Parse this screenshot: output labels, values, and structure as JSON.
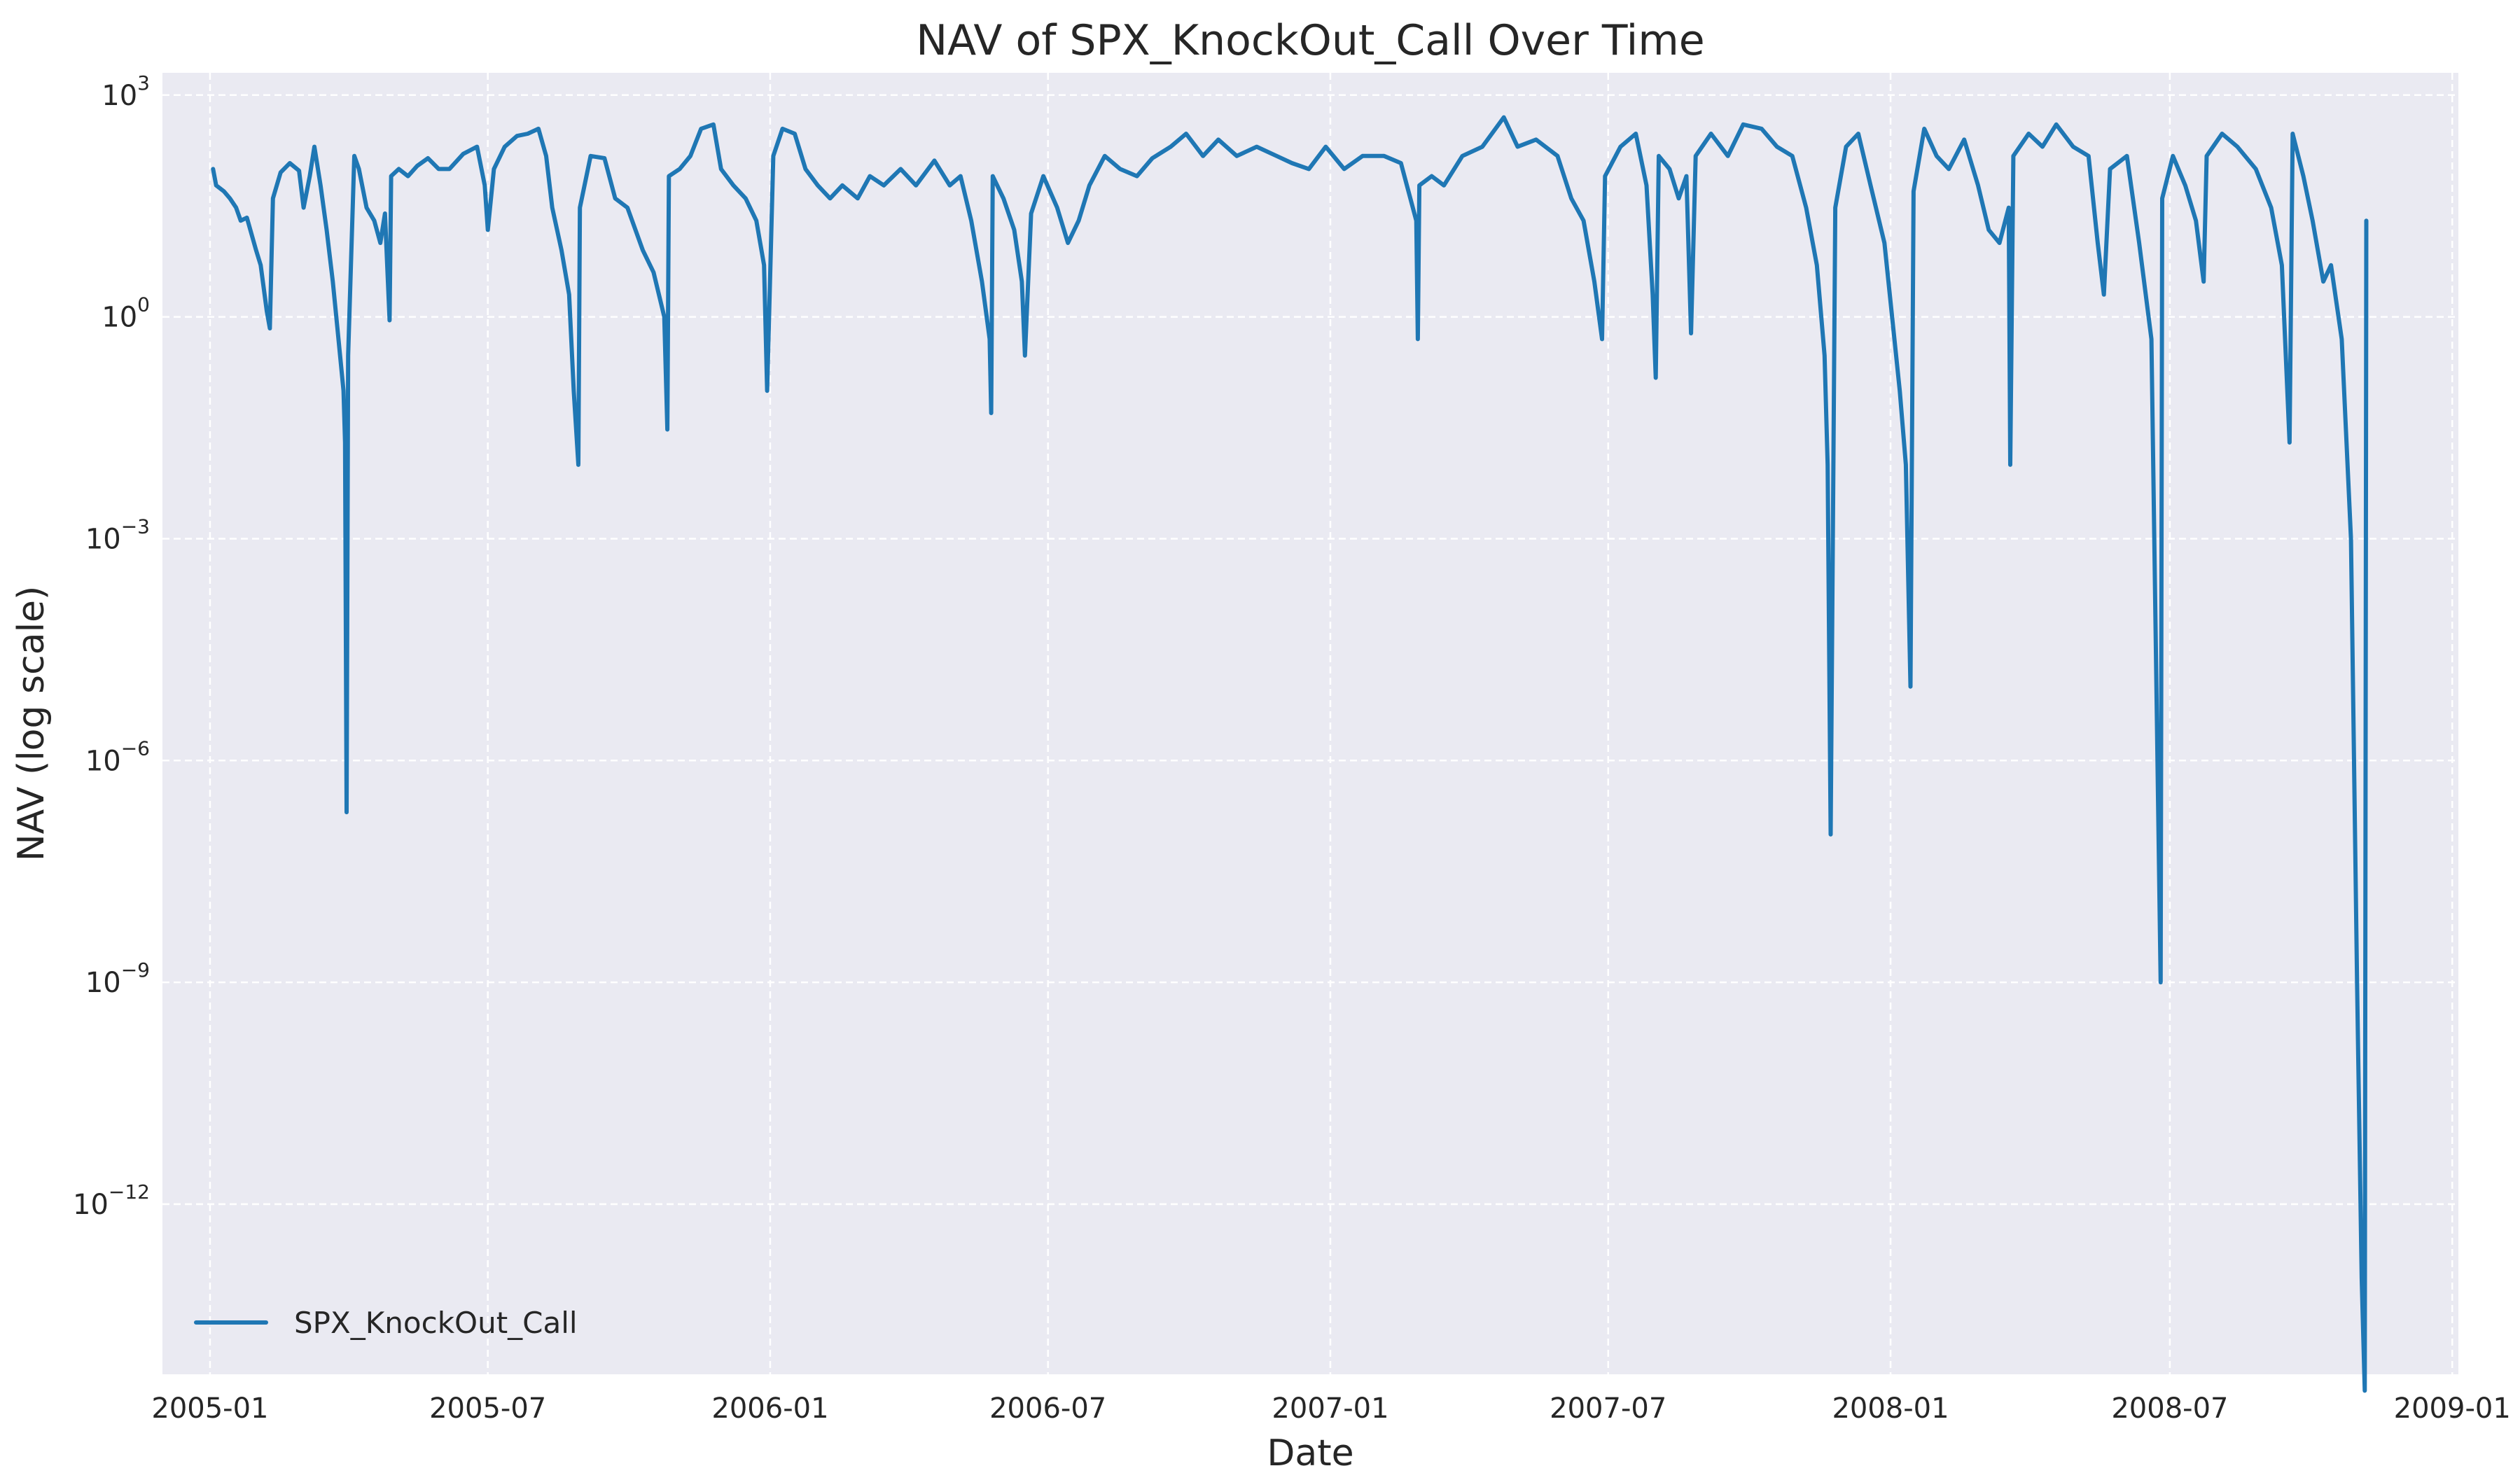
{
  "chart_data": {
    "type": "line",
    "title": "NAV of SPX_KnockOut_Call Over Time",
    "xlabel": "Date",
    "ylabel": "NAV (log scale)",
    "x_scale": "time",
    "y_scale": "log",
    "xlim": [
      "2004-12-01",
      "2009-01-05"
    ],
    "ylim": [
      5e-15,
      2000
    ],
    "grid": true,
    "legend_position": "lower-left",
    "x_ticks": [
      "2005-01",
      "2005-07",
      "2006-01",
      "2006-07",
      "2007-01",
      "2007-07",
      "2008-01",
      "2008-07",
      "2009-01"
    ],
    "y_ticks": [
      {
        "value": 1000,
        "base": "10",
        "exp": "3"
      },
      {
        "value": 1,
        "base": "10",
        "exp": "0"
      },
      {
        "value": 0.001,
        "base": "10",
        "exp": "−3"
      },
      {
        "value": 1e-06,
        "base": "10",
        "exp": "−6"
      },
      {
        "value": 1e-09,
        "base": "10",
        "exp": "−9"
      },
      {
        "value": 1e-12,
        "base": "10",
        "exp": "−12"
      }
    ],
    "series": [
      {
        "name": "SPX_KnockOut_Call",
        "color": "#1f77b4",
        "points": [
          [
            "2005-01-03",
            100
          ],
          [
            "2005-01-05",
            60
          ],
          [
            "2005-01-10",
            50
          ],
          [
            "2005-01-14",
            40
          ],
          [
            "2005-01-18",
            30
          ],
          [
            "2005-01-21",
            20
          ],
          [
            "2005-01-25",
            22
          ],
          [
            "2005-01-31",
            8
          ],
          [
            "2005-02-03",
            5
          ],
          [
            "2005-02-07",
            1.2
          ],
          [
            "2005-02-09",
            0.7
          ],
          [
            "2005-02-11",
            40
          ],
          [
            "2005-02-16",
            90
          ],
          [
            "2005-02-22",
            120
          ],
          [
            "2005-02-28",
            95
          ],
          [
            "2005-03-03",
            30
          ],
          [
            "2005-03-07",
            80
          ],
          [
            "2005-03-10",
            200
          ],
          [
            "2005-03-14",
            60
          ],
          [
            "2005-03-18",
            15
          ],
          [
            "2005-03-22",
            3
          ],
          [
            "2005-03-25",
            0.7
          ],
          [
            "2005-03-29",
            0.1
          ],
          [
            "2005-03-30",
            0.02
          ],
          [
            "2005-03-31",
            2e-07
          ],
          [
            "2005-04-01",
            0.3
          ],
          [
            "2005-04-05",
            150
          ],
          [
            "2005-04-08",
            100
          ],
          [
            "2005-04-13",
            30
          ],
          [
            "2005-04-18",
            20
          ],
          [
            "2005-04-22",
            10
          ],
          [
            "2005-04-25",
            25
          ],
          [
            "2005-04-28",
            0.9
          ],
          [
            "2005-04-29",
            80
          ],
          [
            "2005-05-04",
            100
          ],
          [
            "2005-05-10",
            80
          ],
          [
            "2005-05-16",
            110
          ],
          [
            "2005-05-23",
            140
          ],
          [
            "2005-05-30",
            100
          ],
          [
            "2005-06-06",
            100
          ],
          [
            "2005-06-15",
            160
          ],
          [
            "2005-06-24",
            200
          ],
          [
            "2005-06-29",
            60
          ],
          [
            "2005-07-01",
            15
          ],
          [
            "2005-07-05",
            100
          ],
          [
            "2005-07-12",
            200
          ],
          [
            "2005-07-20",
            280
          ],
          [
            "2005-07-27",
            300
          ],
          [
            "2005-08-03",
            350
          ],
          [
            "2005-08-08",
            150
          ],
          [
            "2005-08-12",
            30
          ],
          [
            "2005-08-18",
            8
          ],
          [
            "2005-08-23",
            2
          ],
          [
            "2005-08-26",
            0.1
          ],
          [
            "2005-08-29",
            0.01
          ],
          [
            "2005-08-30",
            30
          ],
          [
            "2005-09-06",
            150
          ],
          [
            "2005-09-15",
            140
          ],
          [
            "2005-09-22",
            40
          ],
          [
            "2005-09-30",
            30
          ],
          [
            "2005-10-10",
            8
          ],
          [
            "2005-10-17",
            4
          ],
          [
            "2005-10-24",
            1
          ],
          [
            "2005-10-26",
            0.03
          ],
          [
            "2005-10-27",
            80
          ],
          [
            "2005-11-03",
            100
          ],
          [
            "2005-11-10",
            150
          ],
          [
            "2005-11-17",
            350
          ],
          [
            "2005-11-25",
            400
          ],
          [
            "2005-11-30",
            100
          ],
          [
            "2005-12-08",
            60
          ],
          [
            "2005-12-16",
            40
          ],
          [
            "2005-12-23",
            20
          ],
          [
            "2005-12-28",
            5
          ],
          [
            "2005-12-30",
            0.1
          ],
          [
            "2006-01-03",
            150
          ],
          [
            "2006-01-09",
            350
          ],
          [
            "2006-01-17",
            300
          ],
          [
            "2006-01-24",
            100
          ],
          [
            "2006-02-01",
            60
          ],
          [
            "2006-02-09",
            40
          ],
          [
            "2006-02-17",
            60
          ],
          [
            "2006-02-27",
            40
          ],
          [
            "2006-03-07",
            80
          ],
          [
            "2006-03-16",
            60
          ],
          [
            "2006-03-27",
            100
          ],
          [
            "2006-04-06",
            60
          ],
          [
            "2006-04-18",
            130
          ],
          [
            "2006-04-28",
            60
          ],
          [
            "2006-05-05",
            80
          ],
          [
            "2006-05-12",
            20
          ],
          [
            "2006-05-19",
            3
          ],
          [
            "2006-05-24",
            0.5
          ],
          [
            "2006-05-25",
            0.05
          ],
          [
            "2006-05-26",
            80
          ],
          [
            "2006-06-02",
            40
          ],
          [
            "2006-06-09",
            15
          ],
          [
            "2006-06-14",
            3
          ],
          [
            "2006-06-16",
            0.3
          ],
          [
            "2006-06-20",
            25
          ],
          [
            "2006-06-28",
            80
          ],
          [
            "2006-07-07",
            30
          ],
          [
            "2006-07-14",
            10
          ],
          [
            "2006-07-21",
            20
          ],
          [
            "2006-07-28",
            60
          ],
          [
            "2006-08-07",
            150
          ],
          [
            "2006-08-17",
            100
          ],
          [
            "2006-08-28",
            80
          ],
          [
            "2006-09-07",
            140
          ],
          [
            "2006-09-19",
            200
          ],
          [
            "2006-09-29",
            300
          ],
          [
            "2006-10-10",
            150
          ],
          [
            "2006-10-20",
            250
          ],
          [
            "2006-11-01",
            150
          ],
          [
            "2006-11-14",
            200
          ],
          [
            "2006-11-27",
            150
          ],
          [
            "2006-12-07",
            120
          ],
          [
            "2006-12-18",
            100
          ],
          [
            "2006-12-29",
            200
          ],
          [
            "2007-01-10",
            100
          ],
          [
            "2007-01-22",
            150
          ],
          [
            "2007-02-05",
            150
          ],
          [
            "2007-02-16",
            120
          ],
          [
            "2007-02-26",
            20
          ],
          [
            "2007-02-27",
            0.5
          ],
          [
            "2007-02-28",
            60
          ],
          [
            "2007-03-08",
            80
          ],
          [
            "2007-03-16",
            60
          ],
          [
            "2007-03-28",
            150
          ],
          [
            "2007-04-10",
            200
          ],
          [
            "2007-04-24",
            500
          ],
          [
            "2007-05-03",
            200
          ],
          [
            "2007-05-15",
            250
          ],
          [
            "2007-05-29",
            150
          ],
          [
            "2007-06-07",
            40
          ],
          [
            "2007-06-15",
            20
          ],
          [
            "2007-06-22",
            3
          ],
          [
            "2007-06-27",
            0.5
          ],
          [
            "2007-06-29",
            80
          ],
          [
            "2007-07-09",
            200
          ],
          [
            "2007-07-19",
            300
          ],
          [
            "2007-07-26",
            60
          ],
          [
            "2007-07-30",
            2
          ],
          [
            "2007-08-01",
            0.15
          ],
          [
            "2007-08-03",
            150
          ],
          [
            "2007-08-10",
            100
          ],
          [
            "2007-08-16",
            40
          ],
          [
            "2007-08-21",
            80
          ],
          [
            "2007-08-24",
            0.6
          ],
          [
            "2007-08-27",
            150
          ],
          [
            "2007-09-06",
            300
          ],
          [
            "2007-09-17",
            150
          ],
          [
            "2007-09-27",
            400
          ],
          [
            "2007-10-09",
            350
          ],
          [
            "2007-10-19",
            200
          ],
          [
            "2007-10-29",
            150
          ],
          [
            "2007-11-07",
            30
          ],
          [
            "2007-11-14",
            5
          ],
          [
            "2007-11-19",
            0.3
          ],
          [
            "2007-11-21",
            0.01
          ],
          [
            "2007-11-23",
            1e-07
          ],
          [
            "2007-11-26",
            30
          ],
          [
            "2007-12-03",
            200
          ],
          [
            "2007-12-11",
            300
          ],
          [
            "2007-12-19",
            60
          ],
          [
            "2007-12-28",
            10
          ],
          [
            "2008-01-07",
            0.1
          ],
          [
            "2008-01-11",
            0.01
          ],
          [
            "2008-01-14",
            1e-05
          ],
          [
            "2008-01-16",
            50
          ],
          [
            "2008-01-23",
            350
          ],
          [
            "2008-01-31",
            150
          ],
          [
            "2008-02-08",
            100
          ],
          [
            "2008-02-18",
            250
          ],
          [
            "2008-02-27",
            60
          ],
          [
            "2008-03-05",
            15
          ],
          [
            "2008-03-12",
            10
          ],
          [
            "2008-03-18",
            30
          ],
          [
            "2008-03-19",
            0.01
          ],
          [
            "2008-03-21",
            150
          ],
          [
            "2008-03-31",
            300
          ],
          [
            "2008-04-09",
            200
          ],
          [
            "2008-04-18",
            400
          ],
          [
            "2008-04-29",
            200
          ],
          [
            "2008-05-09",
            150
          ],
          [
            "2008-05-15",
            10
          ],
          [
            "2008-05-19",
            2
          ],
          [
            "2008-05-23",
            100
          ],
          [
            "2008-06-03",
            150
          ],
          [
            "2008-06-11",
            10
          ],
          [
            "2008-06-19",
            0.5
          ],
          [
            "2008-06-25",
            1e-09
          ],
          [
            "2008-06-26",
            40
          ],
          [
            "2008-07-03",
            150
          ],
          [
            "2008-07-11",
            60
          ],
          [
            "2008-07-18",
            20
          ],
          [
            "2008-07-23",
            3
          ],
          [
            "2008-07-25",
            150
          ],
          [
            "2008-08-04",
            300
          ],
          [
            "2008-08-14",
            200
          ],
          [
            "2008-08-26",
            100
          ],
          [
            "2008-09-05",
            30
          ],
          [
            "2008-09-12",
            5
          ],
          [
            "2008-09-17",
            0.02
          ],
          [
            "2008-09-19",
            300
          ],
          [
            "2008-09-26",
            80
          ],
          [
            "2008-10-02",
            20
          ],
          [
            "2008-10-09",
            3
          ],
          [
            "2008-10-14",
            5
          ],
          [
            "2008-10-21",
            0.5
          ],
          [
            "2008-10-27",
            0.001
          ],
          [
            "2008-10-31",
            1e-09
          ],
          [
            "2008-11-03",
            1e-13
          ],
          [
            "2008-11-05",
            3e-15
          ],
          [
            "2008-11-06",
            20
          ]
        ]
      }
    ]
  }
}
